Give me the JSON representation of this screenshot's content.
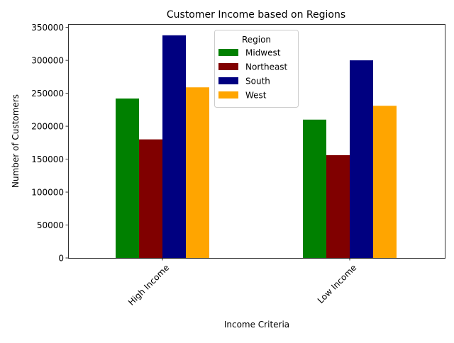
{
  "chart_data": {
    "type": "bar",
    "title": "Customer Income based on Regions",
    "xlabel": "Income Criteria",
    "ylabel": "Number of Customers",
    "categories": [
      "High Income",
      "Low Income"
    ],
    "series": [
      {
        "name": "Midwest",
        "color": "#008000",
        "values": [
          242000,
          210000
        ]
      },
      {
        "name": "Northeast",
        "color": "#800000",
        "values": [
          180000,
          156000
        ]
      },
      {
        "name": "South",
        "color": "#000080",
        "values": [
          338000,
          300000
        ]
      },
      {
        "name": "West",
        "color": "#FFA500",
        "values": [
          259000,
          231000
        ]
      }
    ],
    "ylim": [
      0,
      355000
    ],
    "yticks": [
      0,
      50000,
      100000,
      150000,
      200000,
      250000,
      300000,
      350000
    ],
    "ytick_labels": [
      "0",
      "50000",
      "100000",
      "150000",
      "200000",
      "250000",
      "300000",
      "350000"
    ],
    "grid": false,
    "legend": {
      "title": "Region",
      "placement": "top-center"
    }
  }
}
